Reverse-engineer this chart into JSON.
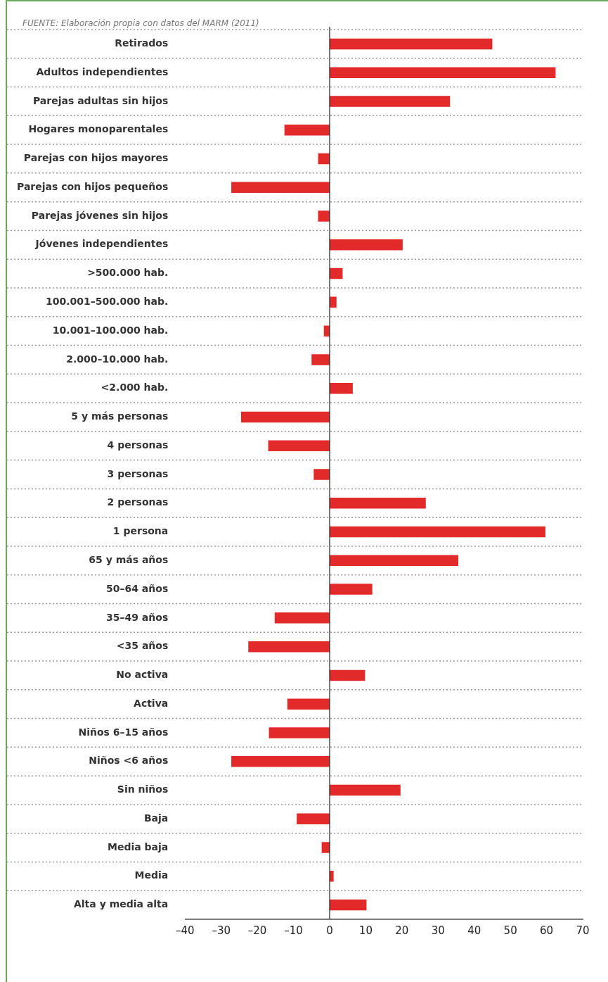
{
  "chart_data": {
    "type": "bar",
    "orientation": "horizontal",
    "annotations": [
      "FUENTE: Elaboración propia con datos del MARM (2011)"
    ],
    "categories": [
      "Retirados",
      "Adultos independientes",
      "Parejas adultas sin hijos",
      "Hogares monoparentales",
      "Parejas con hijos mayores",
      "Parejas con hijos pequeños",
      "Parejas jóvenes sin hijos",
      "Jóvenes independientes",
      ">500.000 hab.",
      "100.001–500.000 hab.",
      "10.001–100.000 hab.",
      "2.000–10.000 hab.",
      "<2.000 hab.",
      "5 y más personas",
      "4 personas",
      "3 personas",
      "2 personas",
      "1 persona",
      "65 y más años",
      "50–64 años",
      "35–49 años",
      "<35 años",
      "No activa",
      "Activa",
      "Niños 6–15 años",
      "Niños <6 años",
      "Sin niños",
      "Baja",
      "Media baja",
      "Media",
      "Alta y media alta"
    ],
    "values": [
      45,
      62.5,
      33.3,
      -12.5,
      -3.2,
      -27.2,
      -3.2,
      20.2,
      3.6,
      1.9,
      -1.6,
      -5,
      6.4,
      -24.5,
      -17,
      -4.4,
      26.6,
      59.7,
      35.6,
      11.8,
      -15.2,
      -22.5,
      9.8,
      -11.7,
      -16.8,
      -27.2,
      19.6,
      -9.1,
      -2.2,
      1.1,
      10.2
    ],
    "color": "#e32a2a",
    "xlim": [
      -40,
      70
    ],
    "xticks": [
      {
        "value": -40,
        "label": "–40"
      },
      {
        "value": -30,
        "label": "–30"
      },
      {
        "value": -20,
        "label": "–20"
      },
      {
        "value": -10,
        "label": "–10"
      },
      0,
      10,
      20,
      30,
      40,
      50,
      60,
      70
    ],
    "grid": "y",
    "legend": false
  }
}
